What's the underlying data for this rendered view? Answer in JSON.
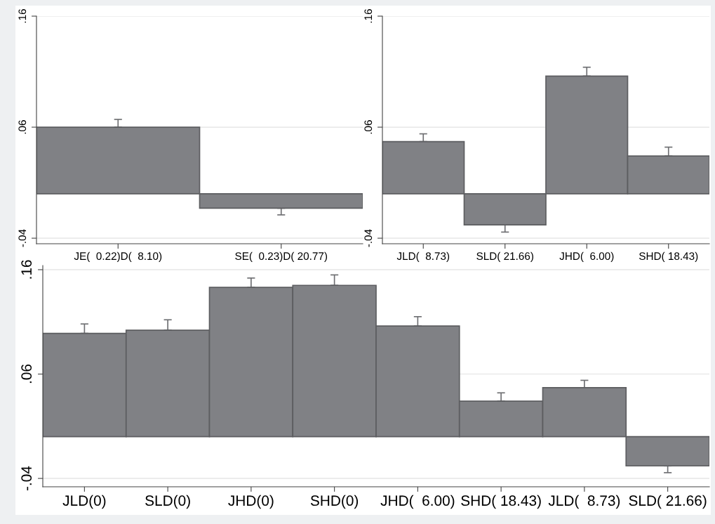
{
  "chart_data": [
    {
      "type": "bar",
      "categories": [
        "JE(  0.22)D(  8.10)",
        "SE(  0.23)D( 20.77)"
      ],
      "color": "#808185",
      "values": [
        0.06,
        -0.013
      ],
      "errors": [
        [
          0.06,
          0.067
        ],
        [
          -0.019,
          -0.013
        ]
      ],
      "ylim": [
        -0.045,
        0.16
      ],
      "yticks": [
        {
          "value": -0.04,
          "label": "-.04"
        },
        {
          "value": 0.06,
          "label": ".06"
        },
        {
          "value": 0.16,
          "label": ".16"
        }
      ],
      "grid": "y"
    },
    {
      "type": "bar",
      "categories": [
        "JLD(  8.73)",
        "SLD( 21.66)",
        "JHD(  6.00)",
        "SHD( 18.43)"
      ],
      "color": "#808185",
      "values": [
        0.047,
        -0.028,
        0.106,
        0.034
      ],
      "errors": [
        [
          0.047,
          0.054
        ],
        [
          -0.0345,
          -0.028
        ],
        [
          0.106,
          0.114
        ],
        [
          0.034,
          0.042
        ]
      ],
      "ylim": [
        -0.045,
        0.16
      ],
      "yticks": [
        {
          "value": -0.04,
          "label": "-.04"
        },
        {
          "value": 0.06,
          "label": ".06"
        },
        {
          "value": 0.16,
          "label": ".16"
        }
      ],
      "grid": "y"
    },
    {
      "type": "bar",
      "categories": [
        "JLD(0)",
        "SLD(0)",
        "JHD(0)",
        "SHD(0)",
        "JHD(  6.00)",
        "SHD( 18.43)",
        "JLD(  8.73)",
        "SLD( 21.66)"
      ],
      "color": "#808185",
      "values": [
        0.099,
        0.102,
        0.143,
        0.145,
        0.106,
        0.034,
        0.047,
        -0.028
      ],
      "errors": [
        [
          0.099,
          0.108
        ],
        [
          0.102,
          0.112
        ],
        [
          0.143,
          0.152
        ],
        [
          0.145,
          0.155
        ],
        [
          0.106,
          0.115
        ],
        [
          0.034,
          0.042
        ],
        [
          0.047,
          0.054
        ],
        [
          -0.0345,
          -0.028
        ]
      ],
      "ylim": [
        -0.048,
        0.164
      ],
      "yticks": [
        {
          "value": -0.04,
          "label": "-.04"
        },
        {
          "value": 0.06,
          "label": ".06"
        },
        {
          "value": 0.16,
          "label": ".16"
        }
      ],
      "grid": "y"
    }
  ]
}
